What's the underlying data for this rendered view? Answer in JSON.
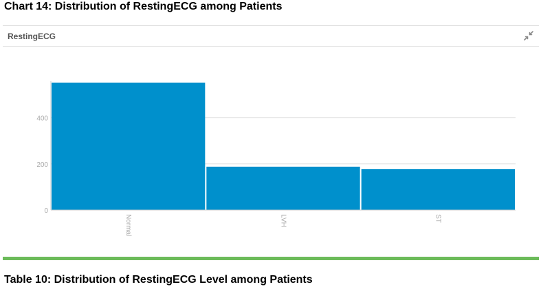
{
  "doc": {
    "chart_caption": "Chart 14: Distribution of RestingECG among Patients",
    "table_caption": "Table 10: Distribution of RestingECG Level among Patients"
  },
  "panel": {
    "title": "RestingECG",
    "collapse_icon": "collapse-arrows-icon"
  },
  "colors": {
    "bar": "#0090cc",
    "grid": "#dddddd",
    "axis_text": "#aaaaaa",
    "accent_rule": "#6cbb5a"
  },
  "chart_data": {
    "type": "bar",
    "categories": [
      "Normal",
      "LVH",
      "ST"
    ],
    "values": [
      552,
      188,
      178
    ],
    "title": "RestingECG",
    "xlabel": "",
    "ylabel": "",
    "ylim": [
      0,
      560
    ],
    "yticks": [
      0,
      200,
      400
    ],
    "grid": true,
    "legend": "none",
    "tick_label_rotation": "vertical"
  }
}
